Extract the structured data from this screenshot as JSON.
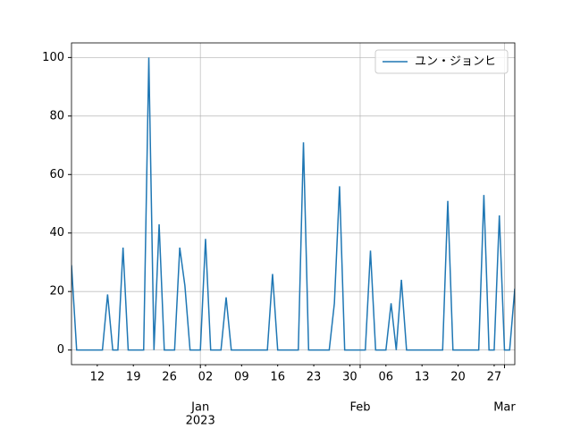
{
  "chart_data": {
    "type": "line",
    "x": [
      "2022-12-07",
      "2022-12-08",
      "2022-12-09",
      "2022-12-10",
      "2022-12-11",
      "2022-12-12",
      "2022-12-13",
      "2022-12-14",
      "2022-12-15",
      "2022-12-16",
      "2022-12-17",
      "2022-12-18",
      "2022-12-19",
      "2022-12-20",
      "2022-12-21",
      "2022-12-22",
      "2022-12-23",
      "2022-12-24",
      "2022-12-25",
      "2022-12-26",
      "2022-12-27",
      "2022-12-28",
      "2022-12-29",
      "2022-12-30",
      "2022-12-31",
      "2023-01-01",
      "2023-01-02",
      "2023-01-03",
      "2023-01-04",
      "2023-01-05",
      "2023-01-06",
      "2023-01-07",
      "2023-01-08",
      "2023-01-09",
      "2023-01-10",
      "2023-01-11",
      "2023-01-12",
      "2023-01-13",
      "2023-01-14",
      "2023-01-15",
      "2023-01-16",
      "2023-01-17",
      "2023-01-18",
      "2023-01-19",
      "2023-01-20",
      "2023-01-21",
      "2023-01-22",
      "2023-01-23",
      "2023-01-24",
      "2023-01-25",
      "2023-01-26",
      "2023-01-27",
      "2023-01-28",
      "2023-01-29",
      "2023-01-30",
      "2023-01-31",
      "2023-02-01",
      "2023-02-02",
      "2023-02-03",
      "2023-02-04",
      "2023-02-05",
      "2023-02-06",
      "2023-02-07",
      "2023-02-08",
      "2023-02-09",
      "2023-02-10",
      "2023-02-11",
      "2023-02-12",
      "2023-02-13",
      "2023-02-14",
      "2023-02-15",
      "2023-02-16",
      "2023-02-17",
      "2023-02-18",
      "2023-02-19",
      "2023-02-20",
      "2023-02-21",
      "2023-02-22",
      "2023-02-23",
      "2023-02-24",
      "2023-02-25",
      "2023-02-26",
      "2023-02-27",
      "2023-02-28",
      "2023-03-01",
      "2023-03-02",
      "2023-03-03"
    ],
    "series": [
      {
        "name": "ユン・ジョンヒ",
        "color": "#1f77b4",
        "values": [
          29,
          0,
          0,
          0,
          0,
          0,
          0,
          19,
          0,
          0,
          35,
          0,
          0,
          0,
          0,
          100,
          0,
          43,
          0,
          0,
          0,
          35,
          22,
          0,
          0,
          0,
          38,
          0,
          0,
          0,
          18,
          0,
          0,
          0,
          0,
          0,
          0,
          0,
          0,
          26,
          0,
          0,
          0,
          0,
          0,
          71,
          0,
          0,
          0,
          0,
          0,
          16,
          56,
          0,
          0,
          0,
          0,
          0,
          34,
          0,
          0,
          0,
          16,
          0,
          24,
          0,
          0,
          0,
          0,
          0,
          0,
          0,
          0,
          51,
          0,
          0,
          0,
          0,
          0,
          0,
          53,
          0,
          0,
          46,
          0,
          0,
          21
        ]
      }
    ],
    "xlim": [
      "2022-12-07",
      "2023-03-03"
    ],
    "xticks": [
      {
        "value": "2022-12-12",
        "label": "12"
      },
      {
        "value": "2022-12-19",
        "label": "19"
      },
      {
        "value": "2022-12-26",
        "label": "26"
      },
      {
        "value": "2023-01-01",
        "label": "Jan"
      },
      {
        "value": "2023-01-02",
        "label": "02"
      },
      {
        "value": "2023-01-09",
        "label": "09"
      },
      {
        "value": "2023-01-16",
        "label": "16"
      },
      {
        "value": "2023-01-23",
        "label": "23"
      },
      {
        "value": "2023-01-30",
        "label": "30"
      },
      {
        "value": "2023-02-01",
        "label": "Feb"
      },
      {
        "value": "2023-02-06",
        "label": "06"
      },
      {
        "value": "2023-02-13",
        "label": "13"
      },
      {
        "value": "2023-02-20",
        "label": "20"
      },
      {
        "value": "2023-02-27",
        "label": "27"
      },
      {
        "value": "2023-03-01",
        "label": "Mar"
      }
    ],
    "x_year_label": "2023",
    "ylim": [
      -5,
      105
    ],
    "yticks": [
      0,
      20,
      40,
      60,
      80,
      100
    ],
    "grid": true,
    "legend": "upper right"
  }
}
